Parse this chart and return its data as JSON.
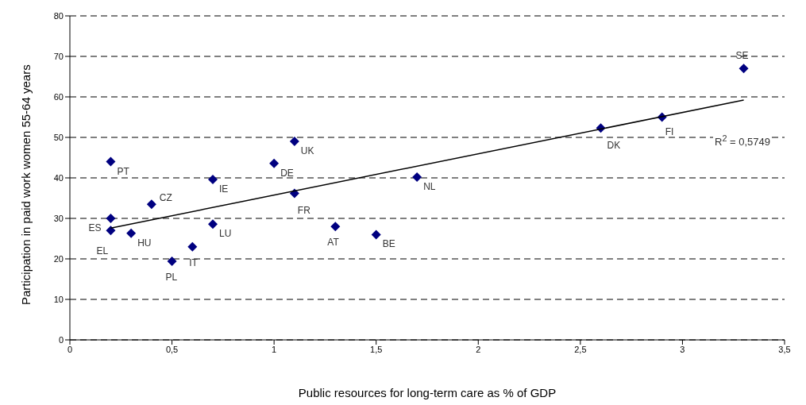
{
  "chart_data": {
    "type": "scatter",
    "xlabel": "Public resources for long-term care as % of GDP",
    "ylabel": "Participation in paid work women 55-64 years",
    "xlim": [
      0,
      3.5
    ],
    "xticks": [
      0,
      {
        "value": 0.5,
        "label": "0,5"
      },
      1,
      {
        "value": 1.5,
        "label": "1,5"
      },
      2,
      {
        "value": 2.5,
        "label": "2,5"
      },
      3,
      {
        "value": 3.5,
        "label": "3,5"
      }
    ],
    "ylim": [
      0,
      80
    ],
    "yticks": [
      0,
      10,
      20,
      30,
      40,
      50,
      60,
      70,
      80
    ],
    "grid": "y",
    "marker": "diamond",
    "legend": false,
    "series": [
      {
        "color": "#000080",
        "x": [
          3.3,
          2.9,
          2.6,
          1.7,
          1.5,
          1.3,
          1.1,
          1.1,
          1.0,
          0.7,
          0.7,
          0.6,
          0.5,
          0.4,
          0.3,
          0.2,
          0.2,
          0.2
        ],
        "values": [
          67,
          55,
          52.3,
          40.2,
          26,
          28,
          36.2,
          49,
          43.6,
          39.6,
          28.6,
          23,
          19.4,
          33.5,
          26.3,
          30,
          27,
          44
        ]
      },
      {
        "type": "line",
        "marker": "none",
        "color": "#000000",
        "x": [
          0.2,
          3.3
        ],
        "values": [
          27.6,
          59.2
        ]
      }
    ],
    "annotations": [
      {
        "text": "SE",
        "x": 3.3,
        "y": 67
      },
      {
        "text": "FI",
        "x": 2.9,
        "y": 55
      },
      {
        "text": "DK",
        "x": 2.6,
        "y": 52.3
      },
      {
        "text": "NL",
        "x": 1.7,
        "y": 40.2
      },
      {
        "text": "BE",
        "x": 1.5,
        "y": 26
      },
      {
        "text": "AT",
        "x": 1.3,
        "y": 28
      },
      {
        "text": "FR",
        "x": 1.1,
        "y": 36.2
      },
      {
        "text": "UK",
        "x": 1.1,
        "y": 49
      },
      {
        "text": "DE",
        "x": 1.0,
        "y": 43.6
      },
      {
        "text": "IE",
        "x": 0.7,
        "y": 39.6
      },
      {
        "text": "LU",
        "x": 0.7,
        "y": 28.6
      },
      {
        "text": "IT",
        "x": 0.6,
        "y": 23
      },
      {
        "text": "PL",
        "x": 0.5,
        "y": 19.4
      },
      {
        "text": "CZ",
        "x": 0.4,
        "y": 33.5
      },
      {
        "text": "HU",
        "x": 0.3,
        "y": 26.3
      },
      {
        "text": "ES",
        "x": 0.2,
        "y": 30
      },
      {
        "text": "EL",
        "x": 0.2,
        "y": 27
      },
      {
        "text": "PT",
        "x": 0.2,
        "y": 44
      },
      "R$^{2}$ = 0,5749"
    ]
  }
}
